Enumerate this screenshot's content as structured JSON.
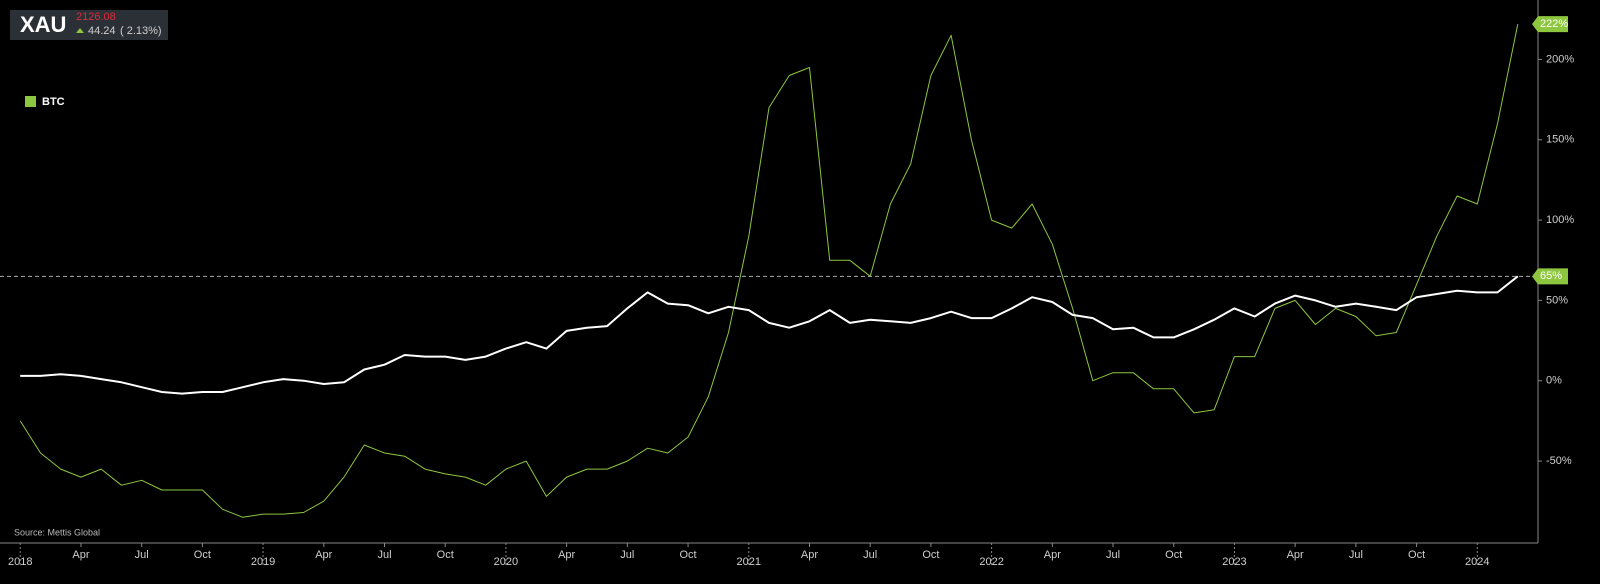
{
  "chart_data": {
    "type": "line",
    "ticker": {
      "price": "2126.08",
      "change": "44.24",
      "change_pct": "( 2.13%)"
    },
    "source": "Source: Mettis Global",
    "x": [
      "2018-01",
      "2018-02",
      "2018-03",
      "2018-04",
      "2018-05",
      "2018-06",
      "2018-07",
      "2018-08",
      "2018-09",
      "2018-10",
      "2018-11",
      "2018-12",
      "2019-01",
      "2019-02",
      "2019-03",
      "2019-04",
      "2019-05",
      "2019-06",
      "2019-07",
      "2019-08",
      "2019-09",
      "2019-10",
      "2019-11",
      "2019-12",
      "2020-01",
      "2020-02",
      "2020-03",
      "2020-04",
      "2020-05",
      "2020-06",
      "2020-07",
      "2020-08",
      "2020-09",
      "2020-10",
      "2020-11",
      "2020-12",
      "2021-01",
      "2021-02",
      "2021-03",
      "2021-04",
      "2021-05",
      "2021-06",
      "2021-07",
      "2021-08",
      "2021-09",
      "2021-10",
      "2021-11",
      "2021-12",
      "2022-01",
      "2022-02",
      "2022-03",
      "2022-04",
      "2022-05",
      "2022-06",
      "2022-07",
      "2022-08",
      "2022-09",
      "2022-10",
      "2022-11",
      "2022-12",
      "2023-01",
      "2023-02",
      "2023-03",
      "2023-04",
      "2023-05",
      "2023-06",
      "2023-07",
      "2023-08",
      "2023-09",
      "2023-10",
      "2023-11",
      "2023-12",
      "2024-01",
      "2024-02",
      "2024-03"
    ],
    "series": [
      {
        "name": "XAU",
        "color": "#ffffff",
        "values": [
          3,
          3,
          4,
          3,
          1,
          -1,
          -4,
          -7,
          -8,
          -7,
          -7,
          -4,
          -1,
          1,
          0,
          -2,
          -1,
          7,
          10,
          16,
          15,
          15,
          13,
          15,
          20,
          24,
          20,
          31,
          33,
          34,
          45,
          55,
          48,
          47,
          42,
          46,
          44,
          36,
          33,
          37,
          44,
          36,
          38,
          37,
          36,
          39,
          43,
          39,
          39,
          45,
          52,
          49,
          41,
          39,
          32,
          33,
          27,
          27,
          32,
          38,
          45,
          40,
          48,
          53,
          50,
          46,
          48,
          46,
          44,
          52,
          54,
          56,
          55,
          55,
          65
        ],
        "value_labels": [
          null,
          null,
          null,
          null,
          null,
          null,
          null,
          null,
          null,
          null,
          null,
          null,
          null,
          null,
          null,
          null,
          null,
          null,
          null,
          null,
          null,
          null,
          null,
          null,
          null,
          null,
          null,
          null,
          null,
          null,
          null,
          null,
          null,
          null,
          null,
          null,
          null,
          null,
          null,
          null,
          null,
          null,
          null,
          null,
          null,
          null,
          null,
          null,
          null,
          null,
          null,
          null,
          null,
          null,
          null,
          null,
          null,
          null,
          null,
          null,
          null,
          null,
          null,
          null,
          null,
          null,
          null,
          null,
          null,
          null,
          null,
          null,
          null,
          null,
          "65%"
        ]
      },
      {
        "name": "BTC",
        "color": "#8dc63f",
        "values": [
          -25,
          -45,
          -55,
          -60,
          -55,
          -65,
          -62,
          -68,
          -68,
          -68,
          -80,
          -85,
          -83,
          -83,
          -82,
          -75,
          -60,
          -40,
          -45,
          -47,
          -55,
          -58,
          -60,
          -65,
          -55,
          -50,
          -72,
          -60,
          -55,
          -55,
          -50,
          -42,
          -45,
          -35,
          -10,
          30,
          90,
          170,
          190,
          195,
          75,
          75,
          65,
          110,
          135,
          190,
          215,
          150,
          100,
          95,
          110,
          85,
          45,
          0,
          5,
          5,
          -5,
          -5,
          -20,
          -18,
          15,
          15,
          45,
          50,
          35,
          45,
          40,
          28,
          30,
          60,
          90,
          115,
          110,
          160,
          222
        ],
        "value_labels": [
          null,
          null,
          null,
          null,
          null,
          null,
          null,
          null,
          null,
          null,
          null,
          null,
          null,
          null,
          null,
          null,
          null,
          null,
          null,
          null,
          null,
          null,
          null,
          null,
          null,
          null,
          null,
          null,
          null,
          null,
          null,
          null,
          null,
          null,
          null,
          null,
          null,
          null,
          null,
          null,
          null,
          null,
          null,
          null,
          null,
          null,
          null,
          null,
          null,
          null,
          null,
          null,
          null,
          null,
          null,
          null,
          null,
          null,
          null,
          null,
          null,
          null,
          null,
          null,
          null,
          null,
          null,
          null,
          null,
          null,
          null,
          null,
          null,
          null,
          "222%"
        ]
      }
    ],
    "xlim": [
      "2017-12",
      "2024-04"
    ],
    "xticks": [
      {
        "value": "2018-01",
        "label": "2018"
      },
      {
        "value": "2018-04",
        "label": "Apr"
      },
      {
        "value": "2018-07",
        "label": "Jul"
      },
      {
        "value": "2018-10",
        "label": "Oct"
      },
      {
        "value": "2019-01",
        "label": "2019"
      },
      {
        "value": "2019-04",
        "label": "Apr"
      },
      {
        "value": "2019-07",
        "label": "Jul"
      },
      {
        "value": "2019-10",
        "label": "Oct"
      },
      {
        "value": "2020-01",
        "label": "2020"
      },
      {
        "value": "2020-04",
        "label": "Apr"
      },
      {
        "value": "2020-07",
        "label": "Jul"
      },
      {
        "value": "2020-10",
        "label": "Oct"
      },
      {
        "value": "2021-01",
        "label": "2021"
      },
      {
        "value": "2021-04",
        "label": "Apr"
      },
      {
        "value": "2021-07",
        "label": "Jul"
      },
      {
        "value": "2021-10",
        "label": "Oct"
      },
      {
        "value": "2022-01",
        "label": "2022"
      },
      {
        "value": "2022-04",
        "label": "Apr"
      },
      {
        "value": "2022-07",
        "label": "Jul"
      },
      {
        "value": "2022-10",
        "label": "Oct"
      },
      {
        "value": "2023-01",
        "label": "2023"
      },
      {
        "value": "2023-04",
        "label": "Apr"
      },
      {
        "value": "2023-07",
        "label": "Jul"
      },
      {
        "value": "2023-10",
        "label": "Oct"
      },
      {
        "value": "2024-01",
        "label": "2024"
      }
    ],
    "ylim": [
      -101,
      237
    ],
    "yticks": [
      {
        "value": -50,
        "label": "-50%"
      },
      {
        "value": 0,
        "label": "0%"
      },
      {
        "value": 50,
        "label": "50%"
      },
      {
        "value": 100,
        "label": "100%"
      },
      {
        "value": 150,
        "label": "150%"
      },
      {
        "value": 200,
        "label": "200%"
      }
    ]
  }
}
